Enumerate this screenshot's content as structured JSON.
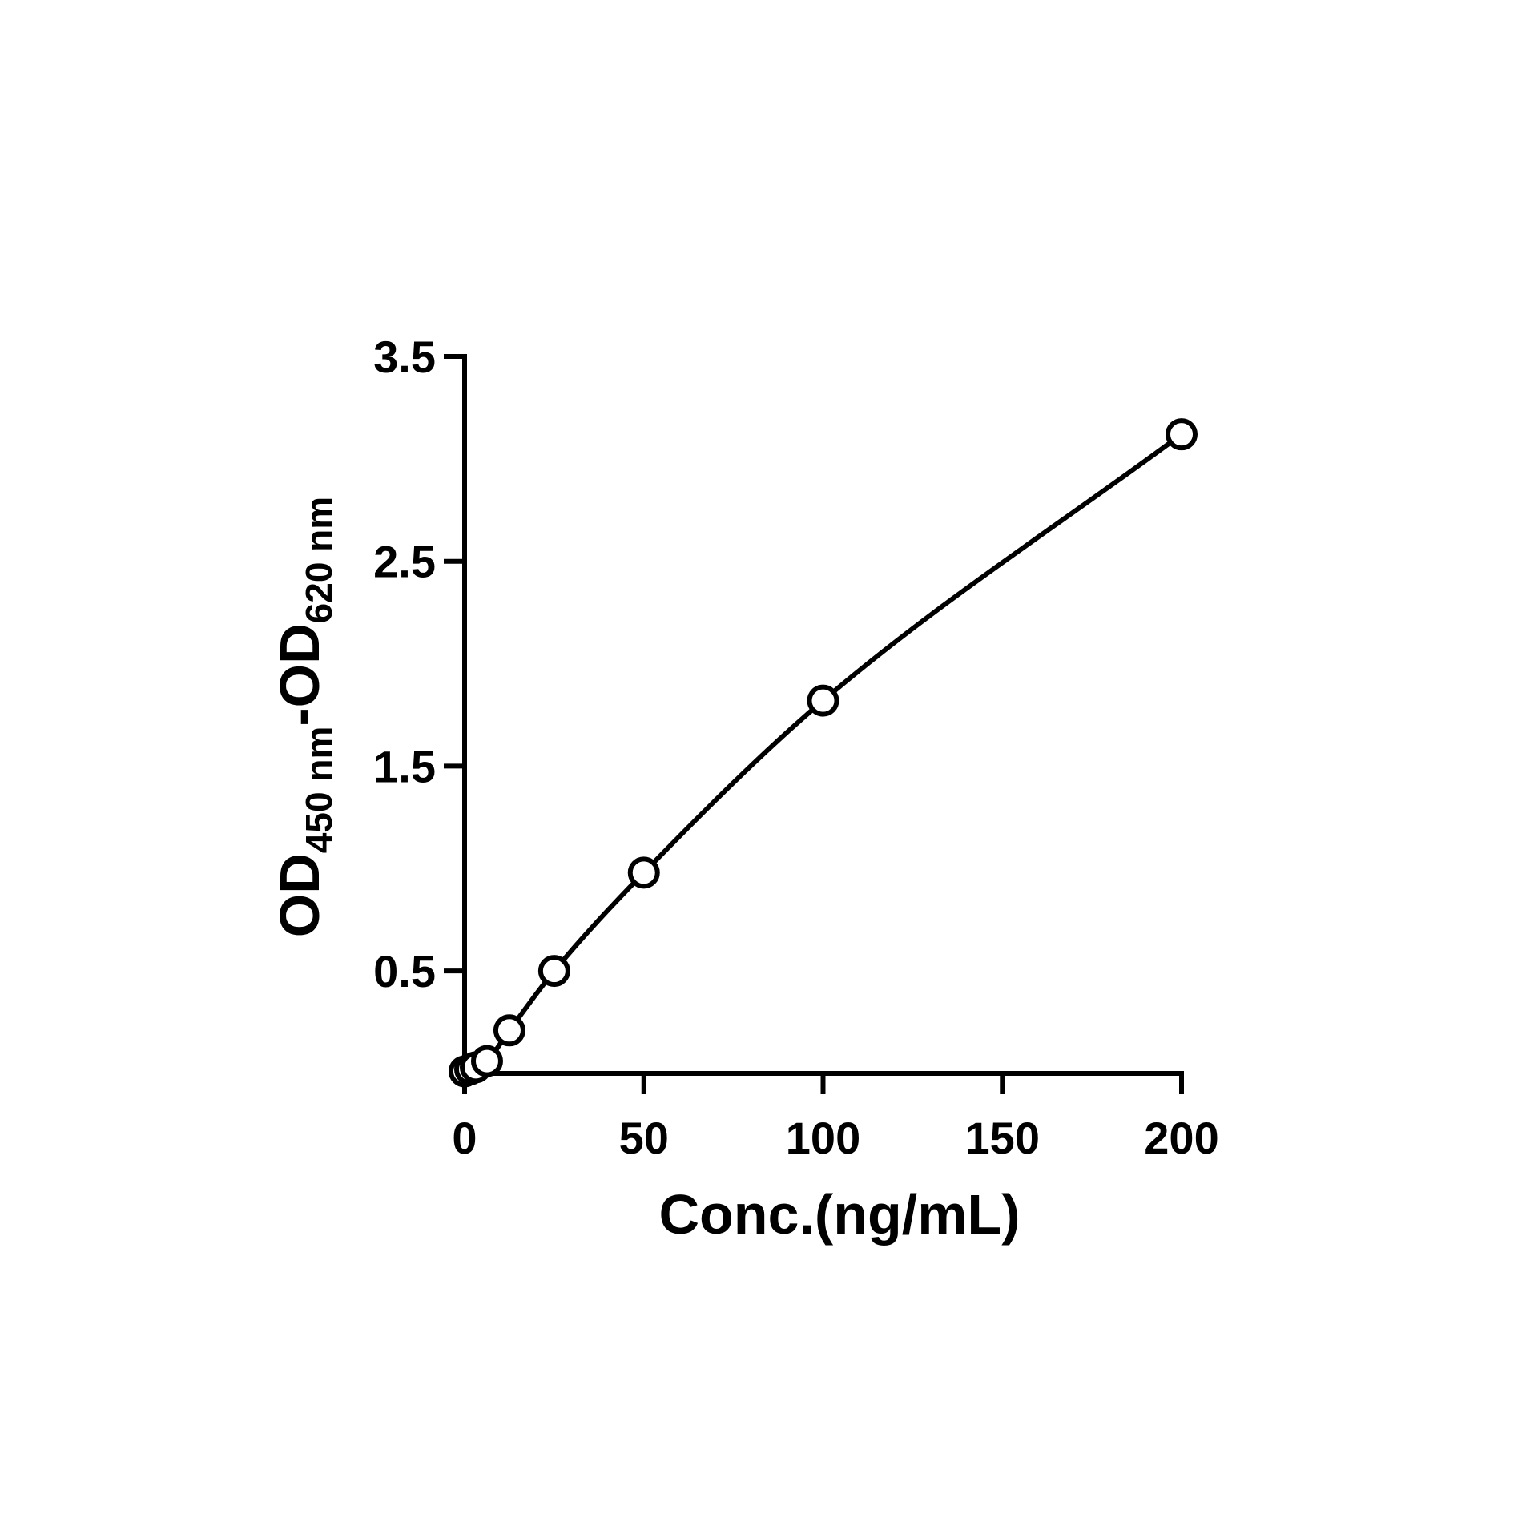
{
  "chart_data": {
    "type": "scatter",
    "title": "",
    "xlabel": "Conc.(ng/mL)",
    "ylabel": {
      "main1": "OD",
      "sub1": "450 nm",
      "sep": "-",
      "main2": "OD",
      "sub2": "620 nm"
    },
    "xlim": [
      0,
      200
    ],
    "ylim": [
      0,
      3.5
    ],
    "xticks": [
      0,
      50,
      100,
      150,
      200
    ],
    "xtick_labels": [
      "0",
      "50",
      "100",
      "150",
      "200"
    ],
    "yticks": [
      0.5,
      1.5,
      2.5,
      3.5
    ],
    "ytick_labels": [
      "0.5",
      "1.5",
      "2.5",
      "3.5"
    ],
    "grid": false,
    "legend": "none",
    "series": [
      {
        "x": [
          0,
          1.56,
          3.13,
          6.25,
          12.5,
          25,
          50,
          100,
          200
        ],
        "y": [
          0.01,
          0.02,
          0.03,
          0.06,
          0.21,
          0.5,
          0.98,
          1.82,
          3.12
        ],
        "marker": "open-circle",
        "line": "smooth"
      }
    ],
    "colors": {
      "line": "#000000",
      "marker_stroke": "#000000",
      "marker_fill": "#ffffff",
      "axis": "#000000"
    }
  }
}
